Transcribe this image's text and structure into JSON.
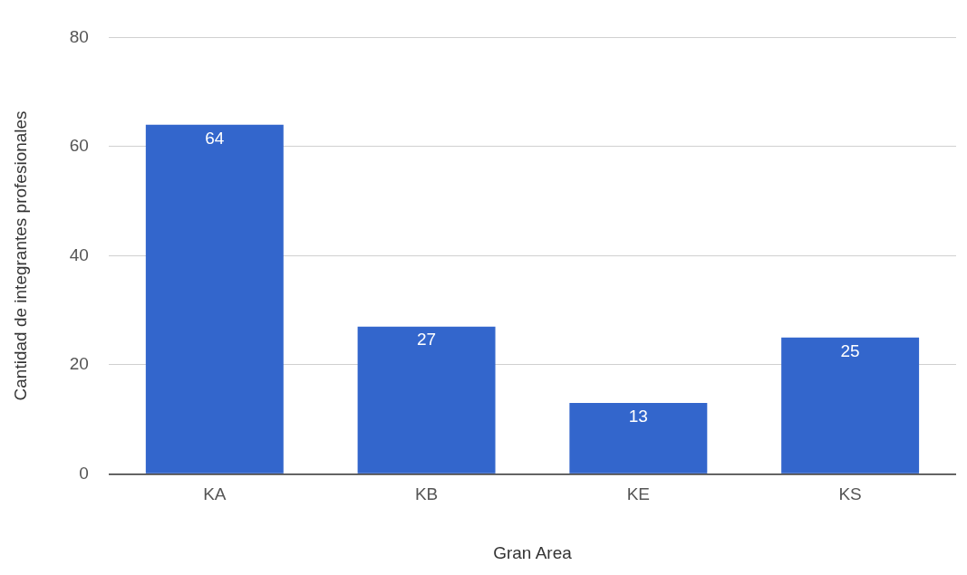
{
  "chart_data": {
    "type": "bar",
    "xlabel": "Gran Area",
    "ylabel": "Cantidad de integrantes profesionales",
    "categories": [
      "KA",
      "KB",
      "KE",
      "KS"
    ],
    "values": [
      64,
      27,
      13,
      25
    ],
    "color": "#3366cc",
    "ylim": [
      0,
      80
    ],
    "yticks": [
      0,
      20,
      40,
      60,
      80
    ],
    "grid": "y",
    "data_labels": true,
    "legend": false
  }
}
